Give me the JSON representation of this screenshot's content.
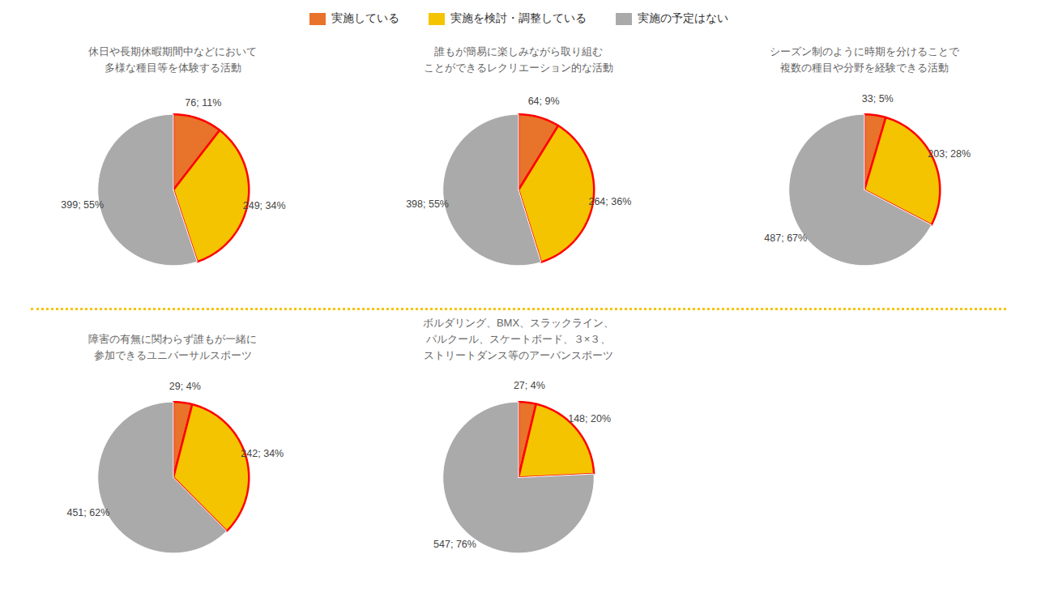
{
  "chart_data": [
    {
      "type": "pie",
      "title": "休日や長期休暇期間中などにおいて\n多様な種目等を体験する活動",
      "categories": [
        "実施している",
        "実施を検討・調整している",
        "実施の予定はない"
      ],
      "values": [
        76,
        249,
        399
      ],
      "value_labels": [
        "76; 11%",
        "249; 34%",
        "399; 55%"
      ],
      "colors": [
        "#E8732A",
        "#F5C400",
        "#AAAAAA"
      ],
      "data_labels": true,
      "legend": "top"
    },
    {
      "type": "pie",
      "title": "誰もが簡易に楽しみながら取り組む\nことができるレクリエーション的な活動",
      "categories": [
        "実施している",
        "実施を検討・調整している",
        "実施の予定はない"
      ],
      "values": [
        64,
        264,
        398
      ],
      "value_labels": [
        "64; 9%",
        "264; 36%",
        "398; 55%"
      ],
      "colors": [
        "#E8732A",
        "#F5C400",
        "#AAAAAA"
      ],
      "data_labels": true
    },
    {
      "type": "pie",
      "title": "シーズン制のように時期を分けることで\n複数の種目や分野を経験できる活動",
      "categories": [
        "実施している",
        "実施を検討・調整している",
        "実施の予定はない"
      ],
      "values": [
        33,
        203,
        487
      ],
      "value_labels": [
        "33; 5%",
        "203; 28%",
        "487; 67%"
      ],
      "colors": [
        "#E8732A",
        "#F5C400",
        "#AAAAAA"
      ],
      "data_labels": true
    },
    {
      "type": "pie",
      "title": "障害の有無に関わらず誰もが一緒に\n参加できるユニバーサルスポーツ",
      "categories": [
        "実施している",
        "実施を検討・調整している",
        "実施の予定はない"
      ],
      "values": [
        29,
        242,
        451
      ],
      "value_labels": [
        "29; 4%",
        "242; 34%",
        "451; 62%"
      ],
      "colors": [
        "#E8732A",
        "#F5C400",
        "#AAAAAA"
      ],
      "data_labels": true
    },
    {
      "type": "pie",
      "title": "ボルダリング、BMX、スラックライン、\nパルクール、スケートボード、３×３、\nストリートダンス等のアーバンスポーツ",
      "categories": [
        "実施している",
        "実施を検討・調整している",
        "実施の予定はない"
      ],
      "values": [
        27,
        148,
        547
      ],
      "value_labels": [
        "27; 4%",
        "148; 20%",
        "547; 76%"
      ],
      "colors": [
        "#E8732A",
        "#F5C400",
        "#AAAAAA"
      ],
      "data_labels": true
    }
  ]
}
